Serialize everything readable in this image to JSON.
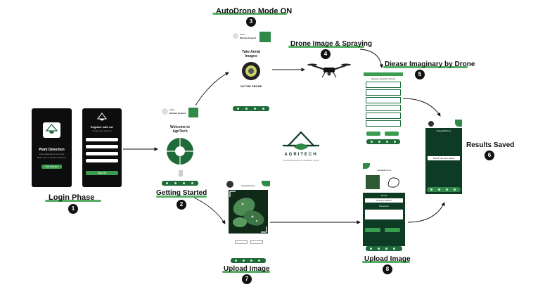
{
  "colors": {
    "accent": "#3aa14a",
    "dark_green": "#0e3b24",
    "text": "#111111"
  },
  "stages": {
    "s1": {
      "label": "Login Phase",
      "number": "1"
    },
    "s2": {
      "label": "Getting Started",
      "number": "2"
    },
    "s3": {
      "label": "AutoDrone Mode ON",
      "number": "3"
    },
    "s4": {
      "label": "Drone Image & Spraying",
      "number": "4"
    },
    "s5": {
      "label": "Diease Imaginary by Drone",
      "number": "5"
    },
    "s6": {
      "label": "Results Saved",
      "number": "6"
    },
    "s7": {
      "label": "Upload Image",
      "number": "7"
    },
    "s8": {
      "label": "Upload Image",
      "number": "8"
    }
  },
  "logo": {
    "name": "AGRITECH",
    "tagline": "Smarter Decisions for Healthier Crops"
  },
  "screens": {
    "splash": {
      "title": "Plant Detection",
      "line1": "Plant diagnosis in seconds",
      "line2": "Make sure of disease detection",
      "button": "Get Started"
    },
    "register": {
      "title": "Register with us!",
      "subtitle": "Create your account",
      "button": "Sign Up"
    },
    "welcome": {
      "greeting": "Hello,",
      "user": "Michael Howard",
      "title": "Welcome to AgriTech"
    },
    "drone_mode": {
      "greeting": "Hello,",
      "user": "Michael Howard",
      "title": "Take Aerial Images",
      "caption": "ON THE DRONE"
    },
    "disease_list": {
      "title": "Disease Detection Result"
    },
    "results": {
      "title": "Upload&Picture",
      "saved_text": "Result has been saved"
    },
    "upload": {
      "title": "Upload Picture"
    },
    "upload_result": {
      "title": "Upload&Picture",
      "label1": "Result",
      "label2": "Powdery Mildew",
      "label3": "Prevention"
    }
  }
}
